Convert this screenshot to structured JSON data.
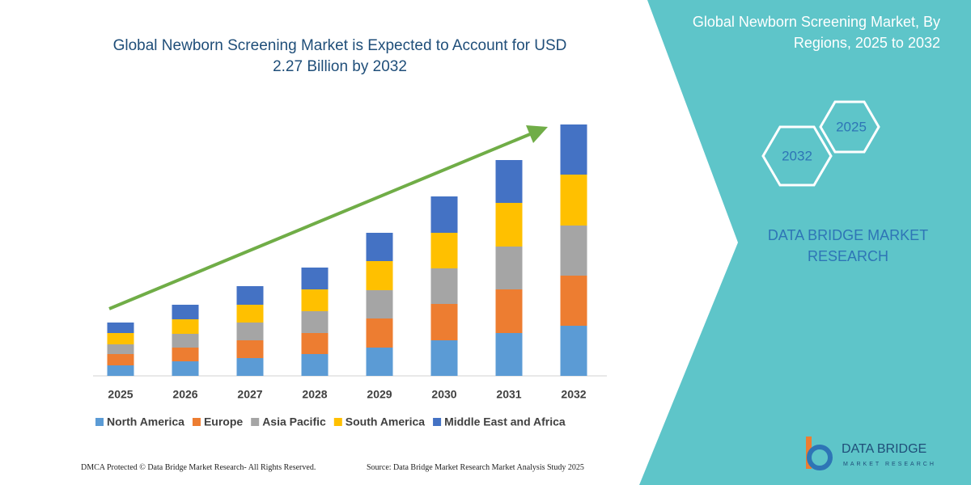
{
  "chart_data": {
    "type": "stacked-bar",
    "title": "Global Newborn Screening Market is Expected to Account for USD 2.27 Billion by 2032",
    "categories": [
      "2025",
      "2026",
      "2027",
      "2028",
      "2029",
      "2030",
      "2031",
      "2032"
    ],
    "series": [
      {
        "name": "North America",
        "color": "#5b9bd5",
        "values": [
          13,
          18,
          22,
          27,
          35,
          44,
          53,
          62
        ]
      },
      {
        "name": "Europe",
        "color": "#ed7d31",
        "values": [
          14,
          17,
          22,
          26,
          36,
          45,
          54,
          62
        ]
      },
      {
        "name": "Asia Pacific",
        "color": "#a5a5a5",
        "values": [
          12,
          17,
          22,
          27,
          35,
          44,
          53,
          62
        ]
      },
      {
        "name": "South America",
        "color": "#ffc000",
        "values": [
          14,
          18,
          22,
          27,
          36,
          44,
          54,
          63
        ]
      },
      {
        "name": "Middle East and Africa",
        "color": "#4472c4",
        "values": [
          13,
          18,
          23,
          27,
          35,
          45,
          53,
          62
        ]
      }
    ],
    "ylim": [
      0,
      320
    ]
  },
  "side_panel": {
    "title": "Global Newborn Screening Market, By Regions, 2025 to 2032",
    "hexagons": [
      "2025",
      "2032"
    ],
    "brand": "DATA BRIDGE MARKET RESEARCH"
  },
  "footer": {
    "left": "DMCA Protected © Data Bridge Market Research- All Rights Reserved.",
    "right": "Source: Data Bridge Market Research Market Analysis Study 2025"
  },
  "logo": {
    "name": "DATA BRIDGE",
    "tagline": "MARKET RESEARCH"
  }
}
